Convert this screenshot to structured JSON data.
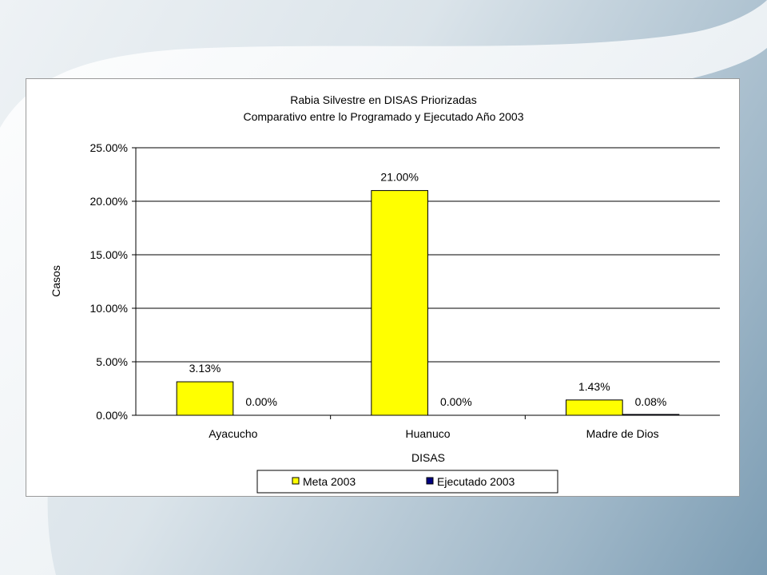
{
  "chart_data": {
    "type": "bar",
    "title": "Rabia Silvestre en DISAS Priorizadas",
    "subtitle": "Comparativo entre lo Programado y Ejecutado Año 2003",
    "xlabel": "DISAS",
    "ylabel": "Casos",
    "categories": [
      "Ayacucho",
      "Huanuco",
      "Madre de Dios"
    ],
    "series": [
      {
        "name": "Meta 2003",
        "values": [
          3.13,
          21.0,
          1.43
        ],
        "labels": [
          "3.13%",
          "21.00%",
          "1.43%"
        ],
        "color": "#ffff00"
      },
      {
        "name": "Ejecutado 2003",
        "values": [
          0.0,
          0.0,
          0.08
        ],
        "labels": [
          "0.00%",
          "0.00%",
          "0.08%"
        ],
        "color": "#000080"
      }
    ],
    "ylim": [
      0,
      25
    ],
    "yticks": [
      0,
      5,
      10,
      15,
      20,
      25
    ],
    "ytick_labels": [
      "0.00%",
      "5.00%",
      "10.00%",
      "15.00%",
      "20.00%",
      "25.00%"
    ],
    "grid": true,
    "legend_position": "bottom"
  }
}
